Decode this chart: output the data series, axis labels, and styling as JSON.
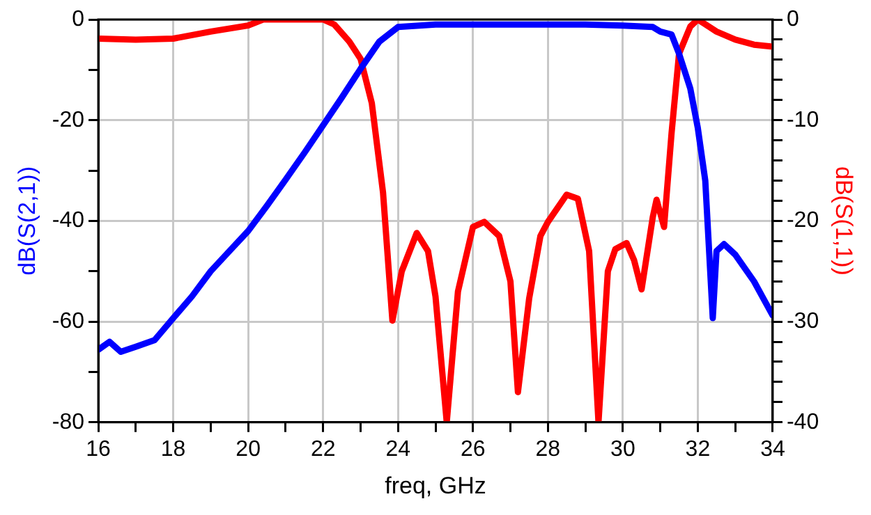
{
  "chart_data": {
    "type": "line",
    "xlabel": "freq, GHz",
    "ylabel": "dB(S(2,1))",
    "y2label": "dB(S(1,1))",
    "xlim": [
      16,
      34
    ],
    "xticks": [
      16,
      {
        "value": 17,
        "label": null
      },
      18,
      {
        "value": 19,
        "label": null
      },
      20,
      {
        "value": 21,
        "label": null
      },
      22,
      {
        "value": 23,
        "label": null
      },
      24,
      {
        "value": 25,
        "label": null
      },
      26,
      {
        "value": 27,
        "label": null
      },
      28,
      {
        "value": 29,
        "label": null
      },
      30,
      {
        "value": 31,
        "label": null
      },
      32,
      {
        "value": 33,
        "label": null
      },
      34
    ],
    "ylim": [
      -80,
      0
    ],
    "yticks": [
      -80,
      {
        "value": -70,
        "label": null
      },
      -60,
      {
        "value": -50,
        "label": null
      },
      -40,
      {
        "value": -30,
        "label": null
      },
      -20,
      {
        "value": -10,
        "label": null
      },
      0
    ],
    "y2lim": [
      -40,
      0
    ],
    "y2ticks": [
      -40,
      {
        "value": -38,
        "label": null
      },
      {
        "value": -36,
        "label": null
      },
      {
        "value": -34,
        "label": null
      },
      {
        "value": -32,
        "label": null
      },
      -30,
      {
        "value": -28,
        "label": null
      },
      {
        "value": -26,
        "label": null
      },
      {
        "value": -24,
        "label": null
      },
      {
        "value": -22,
        "label": null
      },
      -20,
      {
        "value": -18,
        "label": null
      },
      {
        "value": -16,
        "label": null
      },
      {
        "value": -14,
        "label": null
      },
      {
        "value": -12,
        "label": null
      },
      -10,
      {
        "value": -8,
        "label": null
      },
      {
        "value": -6,
        "label": null
      },
      {
        "value": -4,
        "label": null
      },
      {
        "value": -2,
        "label": null
      },
      0
    ],
    "grid": true,
    "legend": false,
    "marker": "none",
    "line_style": "solid",
    "series": [
      {
        "color": "#0000ff",
        "x": [
          16,
          16.3,
          16.6,
          17,
          17.5,
          18,
          18.5,
          19,
          19.5,
          20,
          20.5,
          21,
          21.5,
          22,
          22.5,
          23,
          23.5,
          24,
          25,
          26,
          27,
          28,
          29,
          30,
          30.8,
          31,
          31.3,
          31.5,
          31.8,
          32,
          32.2,
          32.4,
          32.5,
          32.7,
          33,
          33.5,
          34
        ],
        "values": [
          -65.6,
          -64,
          -66,
          -65,
          -63.7,
          -59.3,
          -55,
          -50,
          -46,
          -42,
          -37,
          -31.8,
          -26.5,
          -21,
          -15.5,
          -9.8,
          -4.4,
          -1.5,
          -1,
          -1,
          -1,
          -1,
          -1,
          -1.2,
          -1.5,
          -2.4,
          -3,
          -6.8,
          -13.7,
          -21.5,
          -32,
          -59.3,
          -46,
          -44.6,
          -46.7,
          -52,
          -58.8
        ]
      },
      {
        "color": "#ff0000",
        "axis": "y2",
        "x": [
          16,
          17,
          18,
          19,
          20,
          20.4,
          22,
          22.3,
          22.7,
          23,
          23.3,
          23.6,
          23.85,
          24.1,
          24.5,
          24.8,
          25,
          25.3,
          25.6,
          26,
          26.3,
          26.7,
          27,
          27.2,
          27.5,
          27.8,
          28,
          28.5,
          28.8,
          29.1,
          29.35,
          29.6,
          29.8,
          30.1,
          30.3,
          30.5,
          30.8,
          30.9,
          31.1,
          31.3,
          31.5,
          31.8,
          32,
          32.5,
          33,
          33.5,
          34
        ],
        "values": [
          -1.9,
          -2,
          -1.9,
          -1.2,
          -0.6,
          0,
          0,
          -0.5,
          -2.2,
          -3.9,
          -8.3,
          -17.2,
          -29.9,
          -25,
          -21.2,
          -23,
          -27.5,
          -40,
          -27,
          -20.6,
          -20.1,
          -21.5,
          -26,
          -37,
          -27.7,
          -21.5,
          -20.1,
          -17.4,
          -17.8,
          -23,
          -40,
          -25,
          -22.8,
          -22.2,
          -23.9,
          -26.8,
          -19.6,
          -17.9,
          -20.6,
          -11.3,
          -3.4,
          -0.7,
          0,
          -1.2,
          -2,
          -2.5,
          -2.7
        ]
      }
    ]
  }
}
